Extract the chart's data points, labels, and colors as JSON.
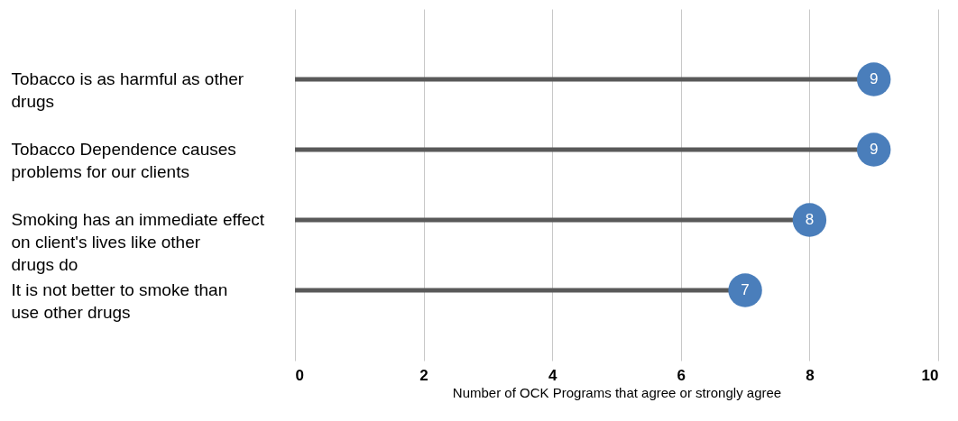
{
  "chart_data": {
    "type": "lollipop",
    "orientation": "horizontal",
    "xlabel": "Number of OCK Programs that agree or strongly agree",
    "categories": [
      "Tobacco is as harmful as other drugs",
      "Tobacco Dependence causes problems for our clients",
      "Smoking has an immediate effect on client's lives like other drugs do",
      "It is not better to smoke than use other drugs"
    ],
    "series": [
      {
        "color": "#4a7ebb",
        "values": [
          9,
          9,
          8,
          7
        ]
      }
    ],
    "xlim": [
      0,
      10
    ],
    "xticks": [
      0,
      2,
      4,
      6,
      8,
      10
    ],
    "grid": "x",
    "marker": "circle",
    "data_labels": true
  }
}
